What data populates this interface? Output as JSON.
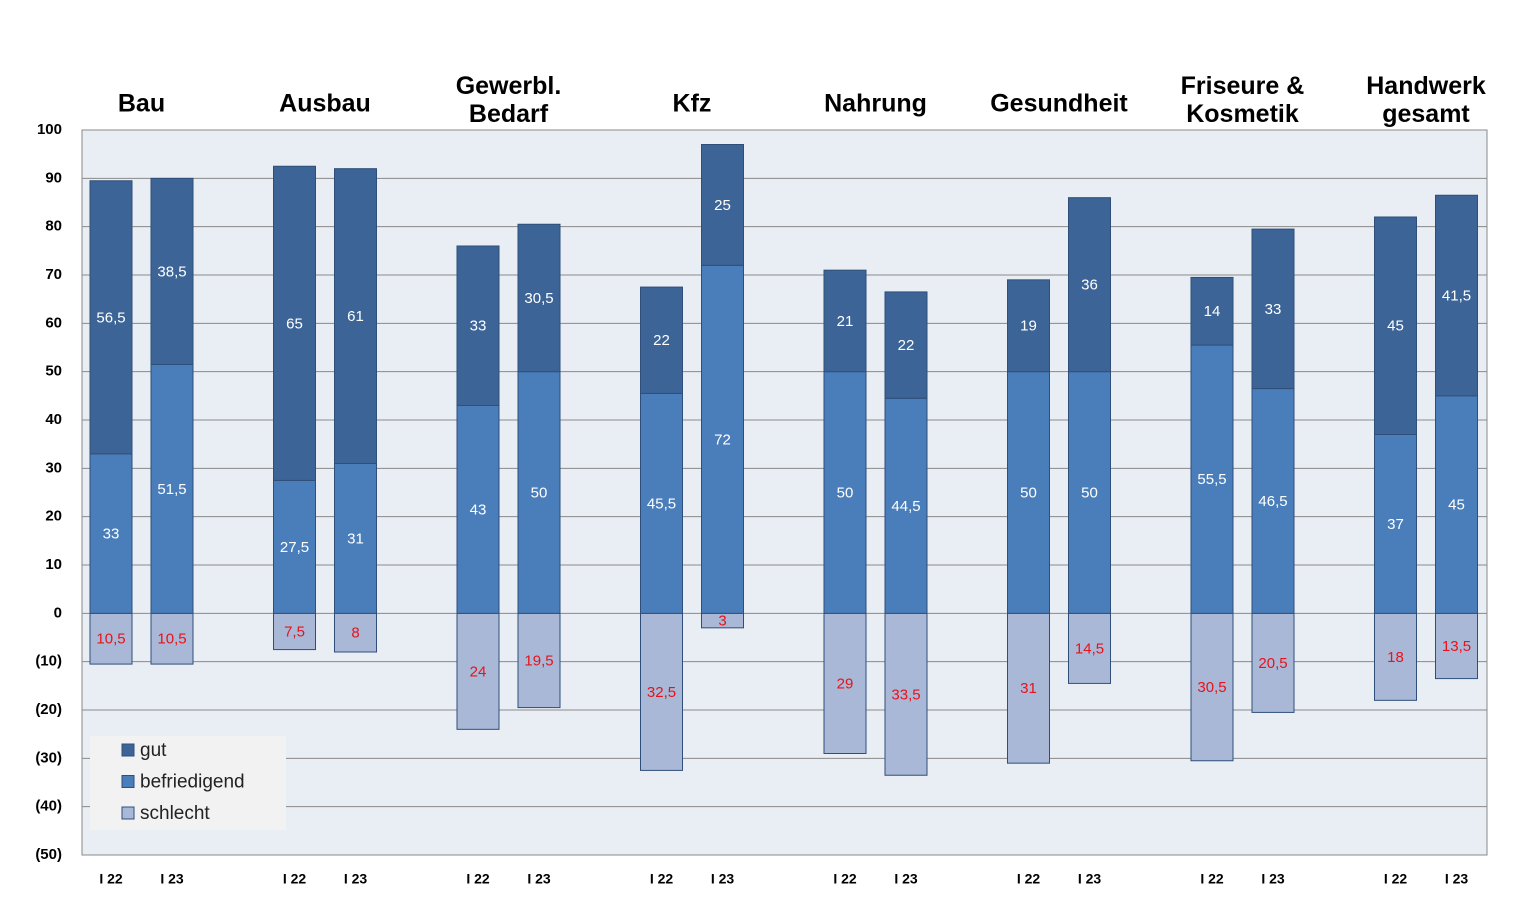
{
  "chart_data": {
    "type": "stacked_bar",
    "groups": [
      "Bau",
      "Ausbau",
      "Gewerbl. Bedarf",
      "Kfz",
      "Nahrung",
      "Gesundheit",
      "Friseure & Kosmetik",
      "Handwerk gesamt"
    ],
    "categories": [
      "I 22",
      "I 23",
      "I 22",
      "I 23",
      "I 22",
      "I 23",
      "I 22",
      "I 23",
      "I 22",
      "I 23",
      "I 22",
      "I 23",
      "I 22",
      "I 23",
      "I 22",
      "I 23"
    ],
    "series": [
      {
        "name": "gut",
        "color": "#3c6497",
        "values": [
          56.5,
          38.5,
          65,
          61,
          33,
          30.5,
          22,
          25,
          21,
          22,
          19,
          36,
          14,
          33,
          45,
          41.5
        ],
        "value_labels": [
          "56,5",
          "38,5",
          "65",
          "61",
          "33",
          "30,5",
          "22",
          "25",
          "21",
          "22",
          "19",
          "36",
          "14",
          "33",
          "45",
          "41,5"
        ]
      },
      {
        "name": "befriedigend",
        "color": "#4a7ebb",
        "values": [
          33,
          51.5,
          27.5,
          31,
          43,
          50,
          45.5,
          72,
          50,
          44.5,
          50,
          50,
          55.5,
          46.5,
          37,
          45
        ],
        "value_labels": [
          "33",
          "51,5",
          "27,5",
          "31",
          "43",
          "50",
          "45,5",
          "72",
          "50",
          "44,5",
          "50",
          "50",
          "55,5",
          "46,5",
          "37",
          "45"
        ]
      },
      {
        "name": "schlecht",
        "color": "#a9b8d7",
        "values": [
          -10.5,
          -10.5,
          -7.5,
          -8,
          -24,
          -19.5,
          -32.5,
          -3,
          -29,
          -33.5,
          -31,
          -14.5,
          -30.5,
          -20.5,
          -18,
          -13.5
        ],
        "value_labels": [
          "10,5",
          "10,5",
          "7,5",
          "8",
          "24",
          "19,5",
          "32,5",
          "3",
          "29",
          "33,5",
          "31",
          "14,5",
          "30,5",
          "20,5",
          "18",
          "13,5"
        ]
      }
    ],
    "ylim": [
      -50,
      100
    ],
    "yticks": [
      {
        "value": -50,
        "label": "(50)"
      },
      {
        "value": -40,
        "label": "(40)"
      },
      {
        "value": -30,
        "label": "(30)"
      },
      {
        "value": -20,
        "label": "(20)"
      },
      {
        "value": -10,
        "label": "(10)"
      },
      0,
      10,
      20,
      30,
      40,
      50,
      60,
      70,
      80,
      90,
      100
    ],
    "grid": true,
    "legend": "lower-left"
  }
}
